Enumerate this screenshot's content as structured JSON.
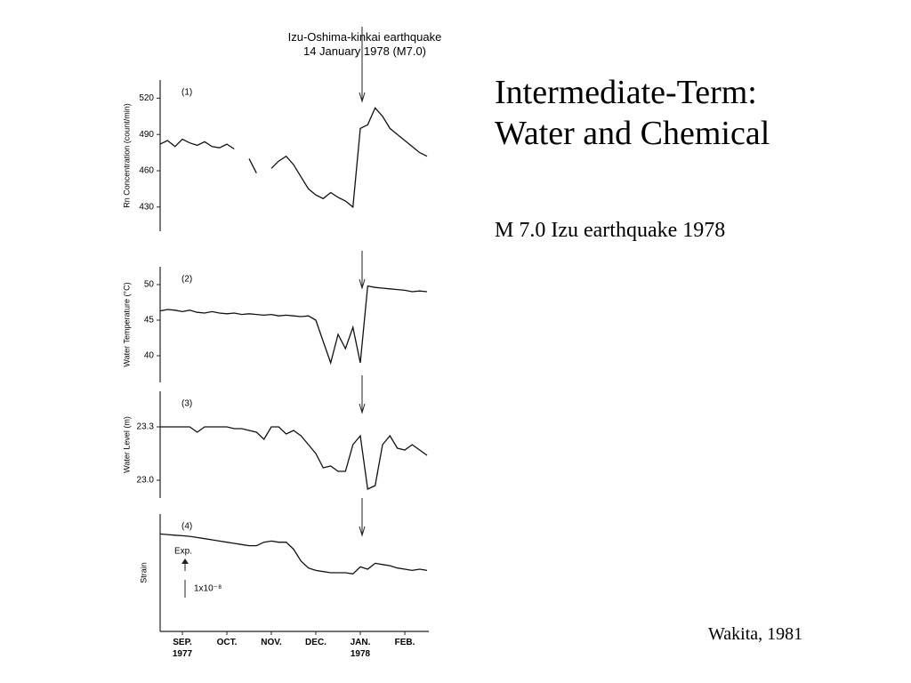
{
  "slide": {
    "title": "Intermediate-Term:\nWater and Chemical",
    "subtitle": "M 7.0  Izu earthquake 1978",
    "credit": "Wakita, 1981"
  },
  "figure_title": "Izu-Oshima-kinkai earthquake\n14 January 1978 (M7.0)",
  "chart_data": [
    {
      "type": "line",
      "panel": "(1)",
      "y_label": "Rn Concentration (count/min)",
      "categories": [
        null,
        null,
        null,
        "SEP.\n1977",
        null,
        null,
        null,
        null,
        null,
        "OCT.",
        null,
        null,
        null,
        null,
        null,
        "NOV.",
        null,
        null,
        null,
        null,
        null,
        "DEC.",
        null,
        null,
        null,
        null,
        null,
        "JAN.\n1978",
        null,
        null,
        null,
        null,
        null,
        "FEB.",
        null,
        null,
        null
      ],
      "series": [
        {
          "color": "#111111",
          "values": [
            482,
            485,
            480,
            486,
            483,
            481,
            484,
            480,
            479,
            482,
            478,
            null,
            470,
            458,
            null,
            462,
            468,
            472,
            465,
            455,
            445,
            440,
            437,
            442,
            438,
            435,
            430,
            495,
            498,
            512,
            505,
            495,
            490,
            485,
            480,
            475,
            472
          ]
        }
      ],
      "ylim": [
        410,
        535
      ],
      "yticks": [
        430,
        460,
        490,
        520
      ]
    },
    {
      "type": "line",
      "panel": "(2)",
      "y_label": "Water Temperature (°C)",
      "series": [
        {
          "color": "#111111",
          "values": [
            46.3,
            46.5,
            46.4,
            46.2,
            46.4,
            46.1,
            46.0,
            46.2,
            46.0,
            45.9,
            46.0,
            45.8,
            45.9,
            45.8,
            45.7,
            45.8,
            45.6,
            45.7,
            45.6,
            45.5,
            45.6,
            45.0,
            42.0,
            39.0,
            43.0,
            41.0,
            44.0,
            39.0,
            49.8,
            49.6,
            49.5,
            49.4,
            49.3,
            49.2,
            49.0,
            49.1,
            49.0
          ]
        }
      ],
      "ylim": [
        36.25,
        52.5
      ],
      "yticks": [
        40,
        45,
        50
      ]
    },
    {
      "type": "line",
      "panel": "(3)",
      "y_label": "Water Level (m)",
      "series": [
        {
          "color": "#111111",
          "values": [
            23.3,
            23.3,
            23.3,
            23.3,
            23.3,
            23.27,
            23.3,
            23.3,
            23.3,
            23.3,
            23.29,
            23.29,
            23.28,
            23.27,
            23.23,
            23.3,
            23.3,
            23.26,
            23.28,
            23.25,
            23.2,
            23.15,
            23.07,
            23.08,
            23.05,
            23.05,
            23.2,
            23.25,
            22.95,
            22.97,
            23.2,
            23.25,
            23.18,
            23.17,
            23.2,
            23.17,
            23.14
          ]
        }
      ],
      "ylim": [
        22.9,
        23.5
      ],
      "yticks": [
        {
          "value": 23.0,
          "label": "23.0"
        },
        23.3
      ]
    },
    {
      "type": "line",
      "panel": "(4)",
      "y_label": "Strain",
      "annotations": [
        "Exp.",
        "1x10⁻⁸"
      ],
      "series": [
        {
          "color": "#111111",
          "values": [
            8.3,
            8.25,
            8.2,
            8.15,
            8.1,
            8.0,
            7.9,
            7.8,
            7.7,
            7.6,
            7.5,
            7.4,
            7.3,
            7.3,
            7.6,
            7.7,
            7.6,
            7.6,
            7.0,
            6.0,
            5.4,
            5.2,
            5.1,
            5.0,
            5.0,
            5.0,
            4.9,
            5.5,
            5.3,
            5.8,
            5.7,
            5.6,
            5.4,
            5.3,
            5.2,
            5.3,
            5.2
          ]
        }
      ],
      "ylim": [
        0,
        10
      ],
      "yticks": []
    }
  ]
}
